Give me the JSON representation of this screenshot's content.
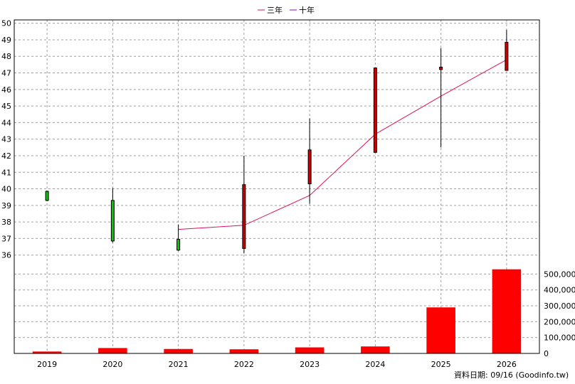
{
  "chart_data": {
    "type": "candlestick",
    "legend": [
      {
        "name": "三年",
        "color": "#e0115f"
      },
      {
        "name": "十年",
        "color": "#9400d3"
      }
    ],
    "legend_placement": "top-center",
    "grid": true,
    "x": [
      "2019",
      "2020",
      "2021",
      "2022",
      "2023",
      "2024",
      "2025",
      "2026"
    ],
    "price_ylim": [
      35,
      50.2
    ],
    "price_ticks": [
      36,
      37,
      38,
      39,
      40,
      41,
      42,
      43,
      44,
      45,
      46,
      47,
      48,
      49,
      50
    ],
    "price_tick_labels": [
      "36",
      "37",
      "38",
      "39",
      "40",
      "41",
      "42",
      "43",
      "44",
      "45",
      "46",
      "47",
      "48",
      "49",
      "50"
    ],
    "candles": [
      {
        "year": "2019",
        "open": 39.85,
        "close": 39.3,
        "high": 39.9,
        "low": 39.25
      },
      {
        "year": "2020",
        "open": 39.3,
        "close": 36.85,
        "high": 40.05,
        "low": 36.75
      },
      {
        "year": "2021",
        "open": 36.95,
        "close": 36.3,
        "high": 37.85,
        "low": 36.25
      },
      {
        "year": "2022",
        "open": 36.4,
        "close": 40.25,
        "high": 42.0,
        "low": 36.1
      },
      {
        "year": "2023",
        "open": 40.3,
        "close": 42.35,
        "high": 44.25,
        "low": 39.1
      },
      {
        "year": "2024",
        "open": 42.2,
        "close": 47.3,
        "high": 47.3,
        "low": 42.2
      },
      {
        "year": "2025",
        "open": 47.2,
        "close": 47.35,
        "high": 48.5,
        "low": 42.5
      },
      {
        "year": "2026",
        "open": 47.15,
        "close": 48.85,
        "high": 49.6,
        "low": 47.15
      }
    ],
    "series": [
      {
        "name": "三年",
        "x": [
          "2021",
          "2022",
          "2023",
          "2024",
          "2025",
          "2026"
        ],
        "values": [
          37.55,
          37.8,
          39.6,
          43.3,
          45.6,
          47.8
        ]
      }
    ],
    "volume": {
      "values": [
        12000,
        34000,
        28000,
        26000,
        38000,
        44000,
        290000,
        530000
      ],
      "ylim": [
        0,
        560000
      ],
      "ticks": [
        0,
        100000,
        200000,
        300000,
        400000,
        500000
      ],
      "tick_labels": [
        "0",
        "100,000",
        "200,000",
        "300,000",
        "400,000",
        "500,000"
      ],
      "bar_color": "#ff0000"
    },
    "colors": {
      "up": "#cc0000",
      "down": "#00cc00",
      "wick": "#000000"
    }
  },
  "footer": {
    "text": "資料日期: 09/16  (Goodinfo.tw)"
  }
}
